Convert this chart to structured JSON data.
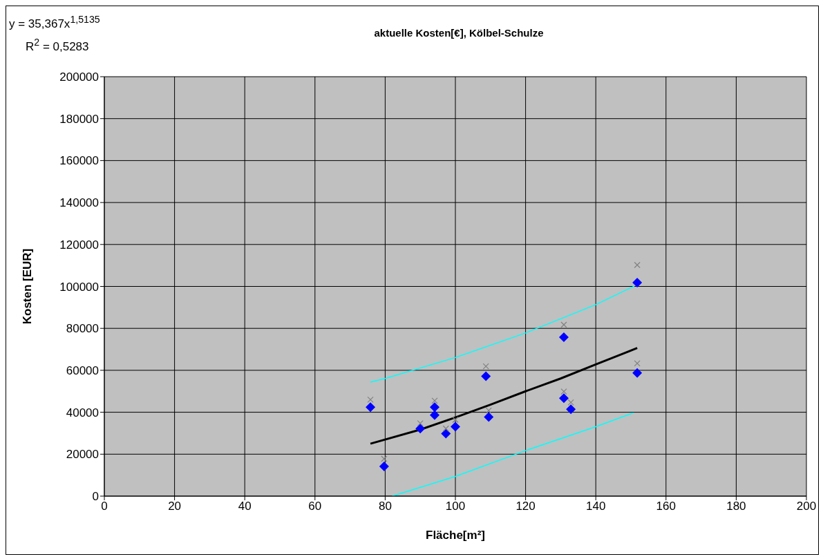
{
  "chart_data": {
    "type": "scatter",
    "title": "aktuelle Kosten[€], Kölbel-Schulze",
    "xlabel": "Fläche[m²]",
    "ylabel": "Kosten [EUR]",
    "annotations": [
      "y = 35,367x$^{1,5135}$",
      "R$^{2}$ = 0,5283"
    ],
    "xlim": [
      0,
      200
    ],
    "xticks": [
      0,
      20,
      40,
      60,
      80,
      100,
      120,
      140,
      160,
      180,
      200
    ],
    "ylim": [
      0,
      200000
    ],
    "yticks": [
      0,
      20000,
      40000,
      60000,
      80000,
      100000,
      120000,
      140000,
      160000,
      180000,
      200000
    ],
    "grid": true,
    "series": [
      {
        "marker": "diamond",
        "color": "#0000ff",
        "x": [
          75.8,
          79.7,
          90,
          94.1,
          94.1,
          97.3,
          100,
          108.7,
          109.5,
          130.9,
          130.9,
          132.9,
          151.8,
          151.8
        ],
        "values": [
          42400,
          14200,
          32200,
          42400,
          38600,
          29800,
          33100,
          57200,
          37700,
          75800,
          46700,
          41400,
          101800,
          58700
        ]
      },
      {
        "marker": "cross",
        "color": "#808080",
        "x": [
          75.8,
          79.7,
          90,
          94.1,
          97.3,
          100,
          108.7,
          109.5,
          130.9,
          130.9,
          132.9,
          151.8,
          151.8
        ],
        "values": [
          46000,
          17800,
          34700,
          45500,
          32200,
          36400,
          61900,
          40800,
          81700,
          49900,
          44700,
          110200,
          63300
        ]
      },
      {
        "type": "line",
        "marker": "none",
        "color": "#000000",
        "x": [
          75.8,
          90,
          100,
          110,
          120,
          130,
          140,
          151.8
        ],
        "values": [
          25000,
          31700,
          37500,
          43600,
          50000,
          56100,
          62800,
          70600
        ]
      },
      {
        "type": "line",
        "marker": "none",
        "color": "#00ffff",
        "x": [
          75.8,
          80,
          100,
          120,
          140,
          151
        ],
        "values": [
          54400,
          56100,
          66100,
          77800,
          91300,
          100200
        ]
      },
      {
        "type": "line",
        "marker": "none",
        "color": "#00ffff",
        "x": [
          82,
          100,
          120,
          140,
          150.7
        ],
        "values": [
          0,
          9400,
          21700,
          33100,
          39700
        ]
      }
    ]
  }
}
